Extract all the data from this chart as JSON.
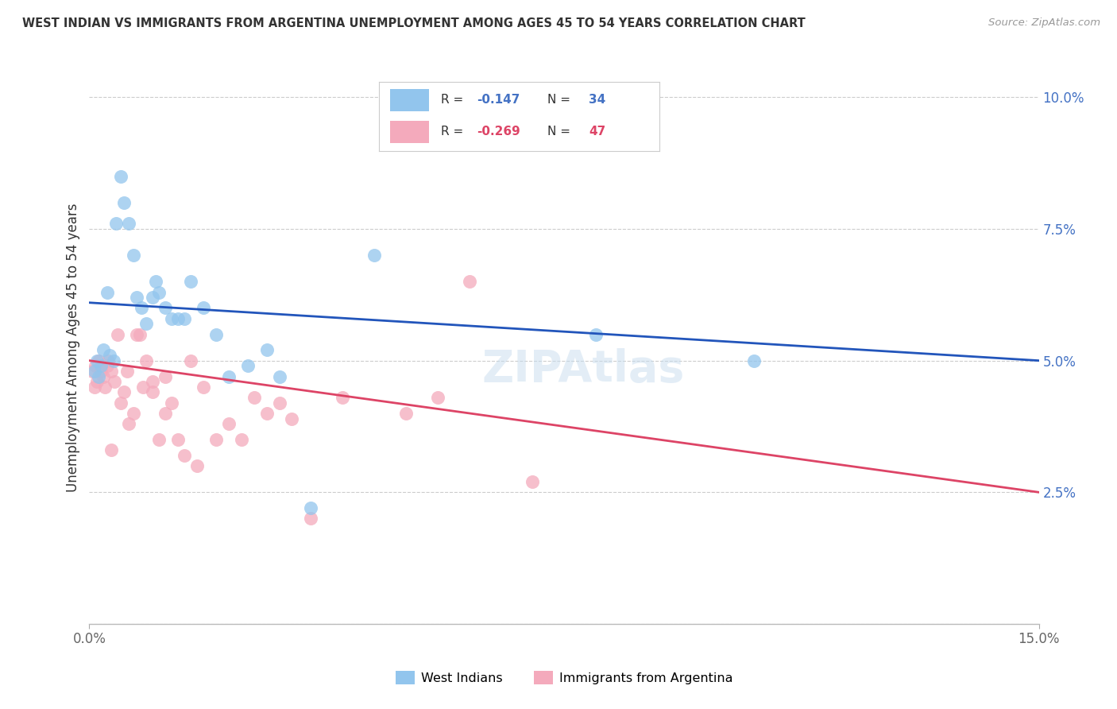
{
  "title": "WEST INDIAN VS IMMIGRANTS FROM ARGENTINA UNEMPLOYMENT AMONG AGES 45 TO 54 YEARS CORRELATION CHART",
  "source": "Source: ZipAtlas.com",
  "ylabel": "Unemployment Among Ages 45 to 54 years",
  "blue_R": "-0.147",
  "blue_N": "34",
  "pink_R": "-0.269",
  "pink_N": "47",
  "legend_label_blue": "West Indians",
  "legend_label_pink": "Immigrants from Argentina",
  "blue_color": "#92C5ED",
  "pink_color": "#F4AABC",
  "line_blue_color": "#2255BB",
  "line_pink_color": "#DD4466",
  "xmin": 0.0,
  "xmax": 15.0,
  "ymin": 0.0,
  "ymax": 10.5,
  "blue_scatter_x": [
    0.08,
    0.12,
    0.15,
    0.18,
    0.22,
    0.28,
    0.32,
    0.38,
    0.42,
    0.5,
    0.55,
    0.62,
    0.7,
    0.75,
    0.82,
    0.9,
    1.0,
    1.05,
    1.1,
    1.2,
    1.3,
    1.5,
    1.6,
    1.8,
    2.0,
    2.2,
    2.5,
    3.0,
    3.5,
    4.5,
    8.0,
    10.5,
    2.8,
    1.4
  ],
  "blue_scatter_y": [
    4.8,
    5.0,
    4.7,
    4.9,
    5.2,
    6.3,
    5.1,
    5.0,
    7.6,
    8.5,
    8.0,
    7.6,
    7.0,
    6.2,
    6.0,
    5.7,
    6.2,
    6.5,
    6.3,
    6.0,
    5.8,
    5.8,
    6.5,
    6.0,
    5.5,
    4.7,
    4.9,
    4.7,
    2.2,
    7.0,
    5.5,
    5.0,
    5.2,
    5.8
  ],
  "pink_scatter_x": [
    0.05,
    0.08,
    0.1,
    0.12,
    0.15,
    0.18,
    0.22,
    0.25,
    0.28,
    0.3,
    0.35,
    0.4,
    0.45,
    0.5,
    0.55,
    0.62,
    0.7,
    0.75,
    0.8,
    0.85,
    0.9,
    1.0,
    1.1,
    1.2,
    1.3,
    1.4,
    1.5,
    1.6,
    1.7,
    1.8,
    2.0,
    2.2,
    2.4,
    2.6,
    2.8,
    3.0,
    3.2,
    3.5,
    4.0,
    5.0,
    5.5,
    6.0,
    7.0,
    1.0,
    0.6,
    1.2,
    0.35
  ],
  "pink_scatter_y": [
    4.8,
    4.5,
    4.9,
    4.6,
    5.0,
    4.8,
    4.7,
    4.5,
    4.9,
    5.0,
    4.8,
    4.6,
    5.5,
    4.2,
    4.4,
    3.8,
    4.0,
    5.5,
    5.5,
    4.5,
    5.0,
    4.4,
    3.5,
    4.0,
    4.2,
    3.5,
    3.2,
    5.0,
    3.0,
    4.5,
    3.5,
    3.8,
    3.5,
    4.3,
    4.0,
    4.2,
    3.9,
    2.0,
    4.3,
    4.0,
    4.3,
    6.5,
    2.7,
    4.6,
    4.8,
    4.7,
    3.3
  ],
  "blue_line_x0": 0.0,
  "blue_line_y0": 6.1,
  "blue_line_x1": 15.0,
  "blue_line_y1": 5.0,
  "pink_line_x0": 0.0,
  "pink_line_y0": 5.0,
  "pink_line_x1": 15.0,
  "pink_line_y1": 2.5,
  "xtick_positions": [
    0.0,
    15.0
  ],
  "xtick_labels": [
    "0.0%",
    "15.0%"
  ],
  "ytick_positions": [
    2.5,
    5.0,
    7.5,
    10.0
  ],
  "ytick_labels": [
    "2.5%",
    "5.0%",
    "7.5%",
    "10.0%"
  ],
  "grid_positions": [
    0.0,
    2.5,
    5.0,
    7.5,
    10.0
  ]
}
